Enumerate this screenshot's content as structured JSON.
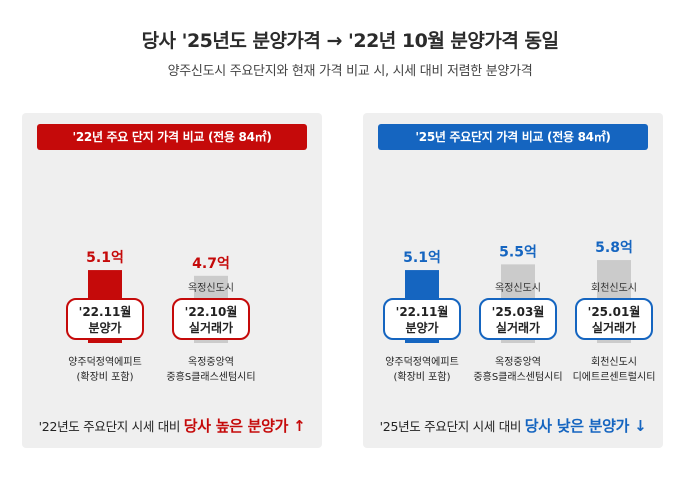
{
  "title": "당사 '25년도 분양가격 → '22년 10월 분양가격 동일",
  "subtitle": "양주신도시 주요단지와 현재 가격 비교 시, 시세 대비 저렴한 분양가격",
  "colors": {
    "red": "#c50a0a",
    "blue": "#1565c0",
    "gray": "#cbcbcb"
  },
  "chart_data": [
    {
      "type": "bar",
      "title": "'22년 주요 단지 가격 비교 (전용 84㎡)",
      "unit": "억",
      "ylim": [
        0,
        6.5
      ],
      "bars": [
        {
          "value": 5.1,
          "label": "5.1억",
          "region": "",
          "box_l1": "'22.11월",
          "box_l2": "분양가",
          "name_l1": "양주덕정역에피트",
          "name_l2": "(확장비 포함)",
          "color": "#c50a0a",
          "accent": "#c50a0a"
        },
        {
          "value": 4.7,
          "label": "4.7억",
          "region": "옥정신도시",
          "box_l1": "'22.10월",
          "box_l2": "실거래가",
          "name_l1": "옥정중앙역",
          "name_l2": "중흥S클래스센텀시티",
          "color": "#cbcbcb",
          "accent": "#c50a0a"
        }
      ],
      "note_prefix": "'22년도 주요단지 시세 대비 ",
      "note_emph": "당사 높은 분양가 ↑"
    },
    {
      "type": "bar",
      "title": "'25년 주요단지 가격 비교 (전용 84㎡)",
      "unit": "억",
      "ylim": [
        0,
        6.5
      ],
      "bars": [
        {
          "value": 5.1,
          "label": "5.1억",
          "region": "",
          "box_l1": "'22.11월",
          "box_l2": "분양가",
          "name_l1": "양주덕정역에피트",
          "name_l2": "(확장비 포함)",
          "color": "#1565c0",
          "accent": "#1565c0"
        },
        {
          "value": 5.5,
          "label": "5.5억",
          "region": "옥정신도시",
          "box_l1": "'25.03월",
          "box_l2": "실거래가",
          "name_l1": "옥정중앙역",
          "name_l2": "중흥S클래스센텀시티",
          "color": "#cbcbcb",
          "accent": "#1565c0"
        },
        {
          "value": 5.8,
          "label": "5.8억",
          "region": "회천신도시",
          "box_l1": "'25.01월",
          "box_l2": "실거래가",
          "name_l1": "회천신도시",
          "name_l2": "디에트르센트럴시티",
          "color": "#cbcbcb",
          "accent": "#1565c0"
        }
      ],
      "note_prefix": "'25년도 주요단지 시세 대비 ",
      "note_emph": "당사 낮은 분양가 ↓"
    }
  ]
}
